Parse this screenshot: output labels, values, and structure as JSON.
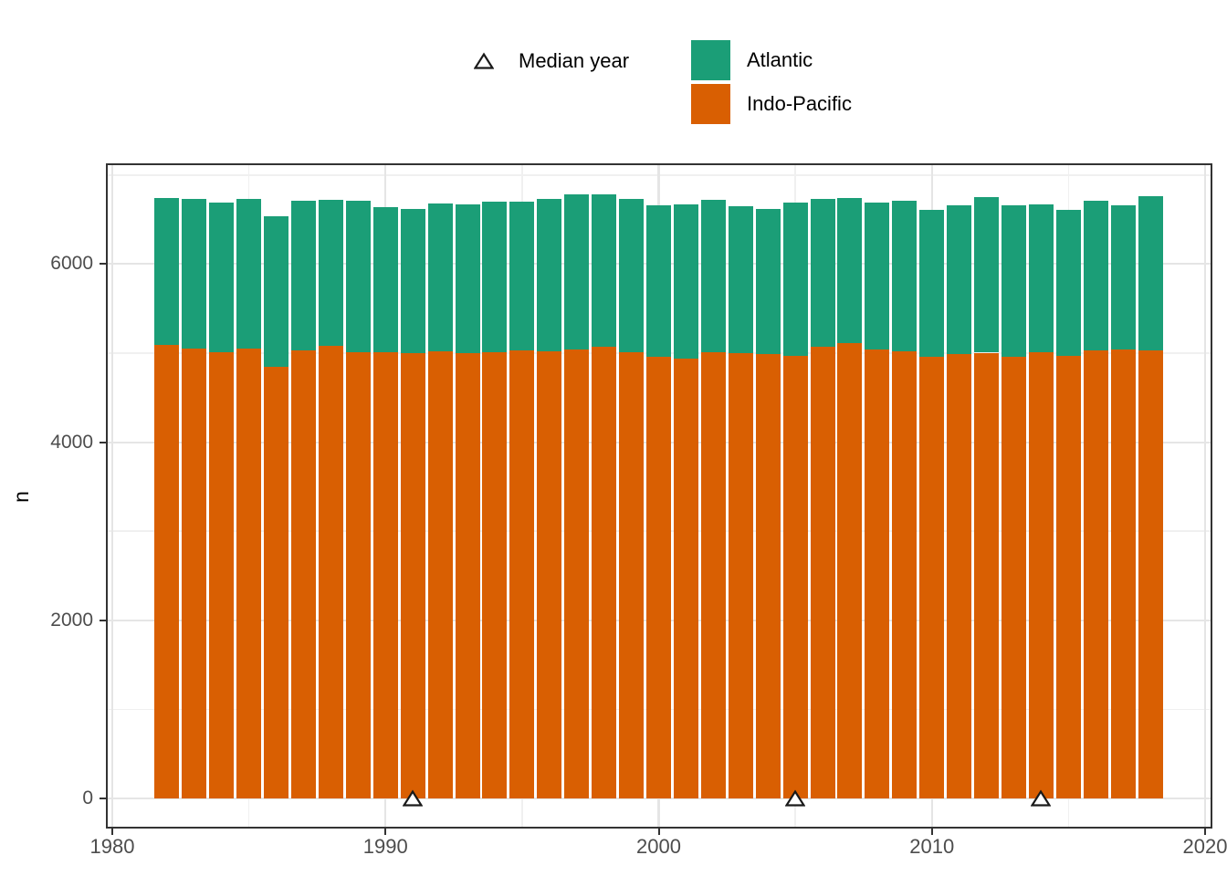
{
  "legend": {
    "median_label": "Median year",
    "series": [
      {
        "name": "Atlantic",
        "color": "#1B9E77"
      },
      {
        "name": "Indo-Pacific",
        "color": "#D95F02"
      }
    ],
    "marker": {
      "shape": "open-triangle-up",
      "fill": "#ffffff",
      "stroke": "#1a1a1a"
    }
  },
  "axes": {
    "y_title": "n",
    "y_ticks": [
      0,
      2000,
      4000,
      6000
    ],
    "x_ticks": [
      1980,
      1990,
      2000,
      2010,
      2020
    ]
  },
  "chart_data": {
    "type": "bar",
    "stacked": true,
    "title": "",
    "xlabel": "",
    "ylabel": "n",
    "xlim": [
      1979.8,
      2020.2
    ],
    "ylim": [
      -340,
      7120
    ],
    "grid": {
      "major_y": [
        0,
        2000,
        4000,
        6000
      ],
      "minor_y": [
        1000,
        3000,
        5000,
        7000
      ],
      "major_x": [
        1980,
        1990,
        2000,
        2010,
        2020
      ],
      "minor_x": [
        1985,
        1995,
        2005,
        2015
      ]
    },
    "legend_position": "top",
    "categories": [
      1982,
      1983,
      1984,
      1985,
      1986,
      1987,
      1988,
      1989,
      1990,
      1991,
      1992,
      1993,
      1994,
      1995,
      1996,
      1997,
      1998,
      1999,
      2000,
      2001,
      2002,
      2003,
      2004,
      2005,
      2006,
      2007,
      2008,
      2009,
      2010,
      2011,
      2012,
      2013,
      2014,
      2015,
      2016,
      2017,
      2018
    ],
    "series": [
      {
        "name": "Indo-Pacific",
        "color": "#D95F02",
        "values": [
          5090,
          5050,
          5015,
          5050,
          4845,
          5030,
          5085,
          5015,
          5010,
          5000,
          5025,
          5005,
          5015,
          5030,
          5020,
          5040,
          5075,
          5015,
          4960,
          4935,
          5015,
          5005,
          4990,
          4965,
          5075,
          5115,
          5045,
          5020,
          4960,
          4990,
          5005,
          4960,
          5015,
          4970,
          5030,
          5040,
          5030
        ]
      },
      {
        "name": "Atlantic",
        "color": "#1B9E77",
        "values": [
          1650,
          1685,
          1675,
          1685,
          1695,
          1685,
          1640,
          1695,
          1625,
          1620,
          1655,
          1665,
          1685,
          1670,
          1710,
          1745,
          1710,
          1715,
          1695,
          1735,
          1710,
          1645,
          1630,
          1725,
          1660,
          1625,
          1645,
          1695,
          1645,
          1670,
          1745,
          1695,
          1660,
          1635,
          1685,
          1620,
          1730
        ]
      }
    ],
    "median_years": [
      1991,
      2005,
      2014
    ]
  }
}
